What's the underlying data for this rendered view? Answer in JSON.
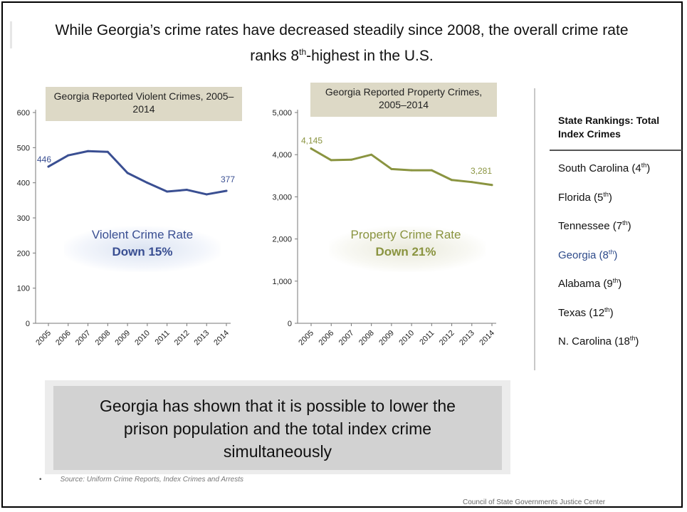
{
  "headline": {
    "line1": "While Georgia’s crime rates have decreased steadily since 2008, the overall crime rate",
    "line2_pre": "ranks 8",
    "line2_sup": "th",
    "line2_post": "-highest in the U.S."
  },
  "chart_data": [
    {
      "type": "line",
      "title": "Georgia Reported Violent Crimes, 2005–2014",
      "categories": [
        "2005",
        "2006",
        "2007",
        "2008",
        "2009",
        "2010",
        "2011",
        "2012",
        "2013",
        "2014"
      ],
      "series": [
        {
          "values": [
            446,
            478,
            490,
            488,
            428,
            400,
            375,
            380,
            367,
            377
          ],
          "color": "#3a4f92"
        }
      ],
      "ylim": [
        0,
        600
      ],
      "yticks": [
        "0",
        "100",
        "200",
        "300",
        "400",
        "500",
        "600"
      ],
      "ytick_values": [
        0,
        100,
        200,
        300,
        400,
        500,
        600
      ],
      "data_labels": {
        "first": "446",
        "last": "377"
      },
      "callout": {
        "name": "Violent Crime Rate",
        "change": "Down 15%",
        "color": "#3a4f92"
      },
      "grid": false
    },
    {
      "type": "line",
      "title": "Georgia Reported Property Crimes, 2005–2014",
      "categories": [
        "2005",
        "2006",
        "2007",
        "2008",
        "2009",
        "2010",
        "2011",
        "2012",
        "2013",
        "2014"
      ],
      "series": [
        {
          "values": [
            4145,
            3870,
            3880,
            4000,
            3660,
            3630,
            3630,
            3400,
            3350,
            3281
          ],
          "color": "#8a9440"
        }
      ],
      "ylim": [
        0,
        5000
      ],
      "yticks": [
        "0",
        "1,000",
        "2,000",
        "3,000",
        "4,000",
        "5,000"
      ],
      "ytick_values": [
        0,
        1000,
        2000,
        3000,
        4000,
        5000
      ],
      "data_labels": {
        "first": "4,145",
        "last": "3,281"
      },
      "callout": {
        "name": "Property Crime Rate",
        "change": "Down 21%",
        "color": "#8a9440"
      },
      "grid": false
    }
  ],
  "rankings": {
    "header": "State Rankings: Total Index Crimes",
    "items": [
      {
        "name": "South Carolina (4",
        "sup": "th",
        "close": ")"
      },
      {
        "name": "Florida (5",
        "sup": "th",
        "close": ")"
      },
      {
        "name": "Tennessee (7",
        "sup": "th",
        "close": ")"
      },
      {
        "name": "Georgia (8",
        "sup": "th",
        "close": ")",
        "highlight": true
      },
      {
        "name": "Alabama (9",
        "sup": "th",
        "close": ")"
      },
      {
        "name": "Texas (12",
        "sup": "th",
        "close": ")"
      },
      {
        "name": "N. Carolina (18",
        "sup": "th",
        "close": ")"
      }
    ]
  },
  "banner": {
    "line1": "Georgia has shown that it is possible to lower the",
    "line2": "prison population and the total index crime",
    "line3": "simultaneously"
  },
  "footer": {
    "bullet": "•",
    "source": "Source: Uniform Crime Reports, Index Crimes and Arrests",
    "credit": "Council of State Governments Justice Center"
  }
}
